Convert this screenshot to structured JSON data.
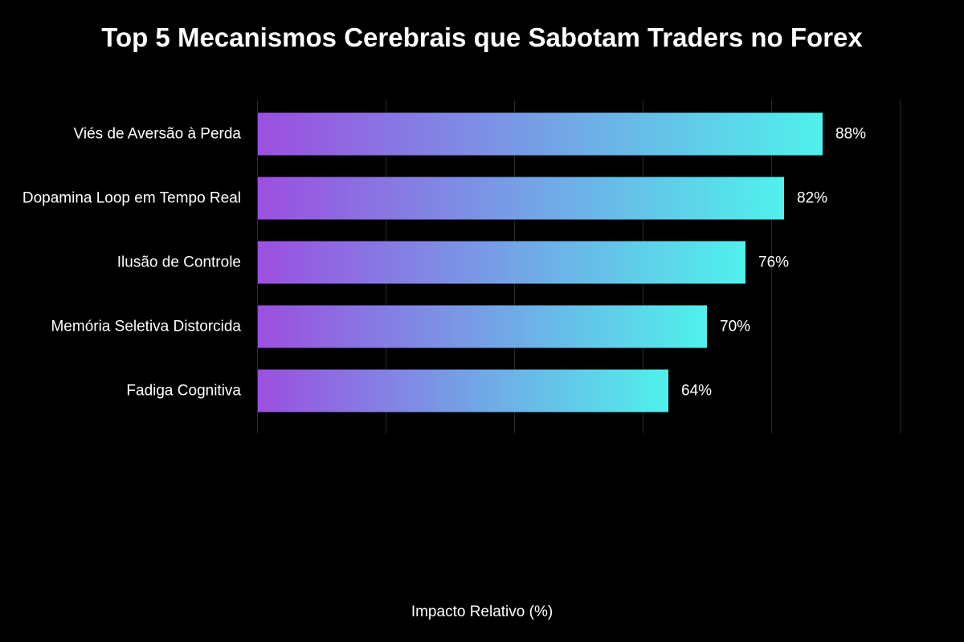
{
  "chart_data": {
    "type": "bar",
    "orientation": "horizontal",
    "title": "Top 5 Mecanismos Cerebrais que Sabotam Traders no Forex",
    "xlabel": "Impacto Relativo (%)",
    "ylabel": "",
    "categories": [
      "Viés de Aversão à Perda",
      "Dopamina Loop em Tempo Real",
      "Ilusão de Controle",
      "Memória Seletiva Distorcida",
      "Fadiga Cognitiva"
    ],
    "values": [
      88,
      82,
      76,
      70,
      64
    ],
    "data_labels": [
      "88%",
      "82%",
      "76%",
      "70%",
      "64%"
    ],
    "xlim": [
      0,
      100
    ],
    "grid": true,
    "legend": "none",
    "colors": {
      "background": "#000000",
      "text": "#ffffff",
      "gridline": "#2a2a2a",
      "bar_gradient_start": "#9b4fe0",
      "bar_gradient_end": "#4ff1ec"
    }
  }
}
